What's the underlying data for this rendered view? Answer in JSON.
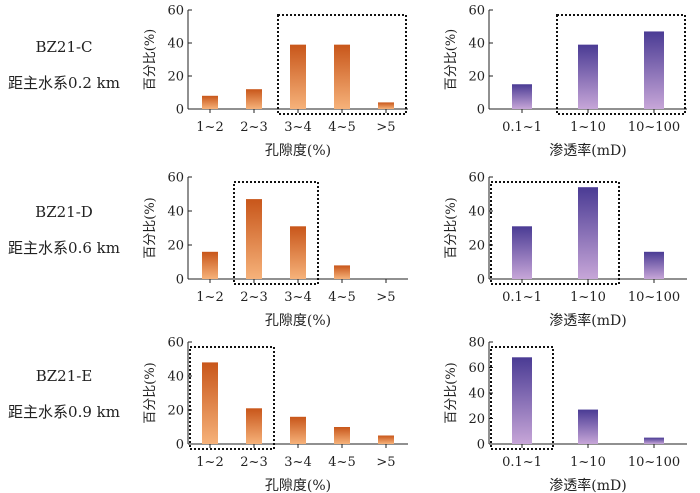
{
  "rows": [
    {
      "well": "BZ21-C",
      "distance": "距主水系0.2 km"
    },
    {
      "well": "BZ21-D",
      "distance": "距主水系0.6 km"
    },
    {
      "well": "BZ21-E",
      "distance": "距主水系0.9 km"
    }
  ],
  "colors": {
    "porosity_dark": "#c8561a",
    "porosity_light": "#f6b27a",
    "permeability_dark": "#4a3b94",
    "permeability_light": "#c7a6d8",
    "axis": "#222222",
    "highlight_box": "#111111"
  },
  "chart_data": [
    {
      "id": "C-porosity",
      "type": "bar",
      "row": 0,
      "group": "porosity",
      "categories": [
        "1~2",
        "2~3",
        "3~4",
        "4~5",
        ">5"
      ],
      "values": [
        8,
        12,
        39,
        39,
        4
      ],
      "ylabel": "百分比(%)",
      "xlabel": "孔隙度(%)",
      "ylim": [
        0,
        60
      ],
      "yticks": [
        0,
        20,
        40,
        60
      ],
      "highlight": [
        2,
        4
      ]
    },
    {
      "id": "C-permeability",
      "type": "bar",
      "row": 0,
      "group": "permeability",
      "categories": [
        "0.1~1",
        "1~10",
        "10~100"
      ],
      "values": [
        15,
        39,
        47
      ],
      "ylabel": "百分比(%)",
      "xlabel": "渗透率(mD)",
      "ylim": [
        0,
        60
      ],
      "yticks": [
        0,
        20,
        40,
        60
      ],
      "highlight": [
        1,
        2
      ]
    },
    {
      "id": "D-porosity",
      "type": "bar",
      "row": 1,
      "group": "porosity",
      "categories": [
        "1~2",
        "2~3",
        "3~4",
        "4~5",
        ">5"
      ],
      "values": [
        16,
        47,
        31,
        8,
        0
      ],
      "ylabel": "百分比(%)",
      "xlabel": "孔隙度(%)",
      "ylim": [
        0,
        60
      ],
      "yticks": [
        0,
        20,
        40,
        60
      ],
      "highlight": [
        1,
        2
      ]
    },
    {
      "id": "D-permeability",
      "type": "bar",
      "row": 1,
      "group": "permeability",
      "categories": [
        "0.1~1",
        "1~10",
        "10~100"
      ],
      "values": [
        31,
        54,
        16
      ],
      "ylabel": "百分比(%)",
      "xlabel": "渗透率(mD)",
      "ylim": [
        0,
        60
      ],
      "yticks": [
        0,
        20,
        40,
        60
      ],
      "highlight": [
        0,
        1
      ]
    },
    {
      "id": "E-porosity",
      "type": "bar",
      "row": 2,
      "group": "porosity",
      "categories": [
        "1~2",
        "2~3",
        "3~4",
        "4~5",
        ">5"
      ],
      "values": [
        48,
        21,
        16,
        10,
        5
      ],
      "ylabel": "百分比(%)",
      "xlabel": "孔隙度(%)",
      "ylim": [
        0,
        60
      ],
      "yticks": [
        0,
        20,
        40,
        60
      ],
      "highlight": [
        0,
        1
      ]
    },
    {
      "id": "E-permeability",
      "type": "bar",
      "row": 2,
      "group": "permeability",
      "categories": [
        "0.1~1",
        "1~10",
        "10~100"
      ],
      "values": [
        68,
        27,
        5
      ],
      "ylabel": "百分比(%)",
      "xlabel": "渗透率(mD)",
      "ylim": [
        0,
        80
      ],
      "yticks": [
        0,
        20,
        40,
        60,
        80
      ],
      "highlight": [
        0,
        0
      ]
    }
  ]
}
